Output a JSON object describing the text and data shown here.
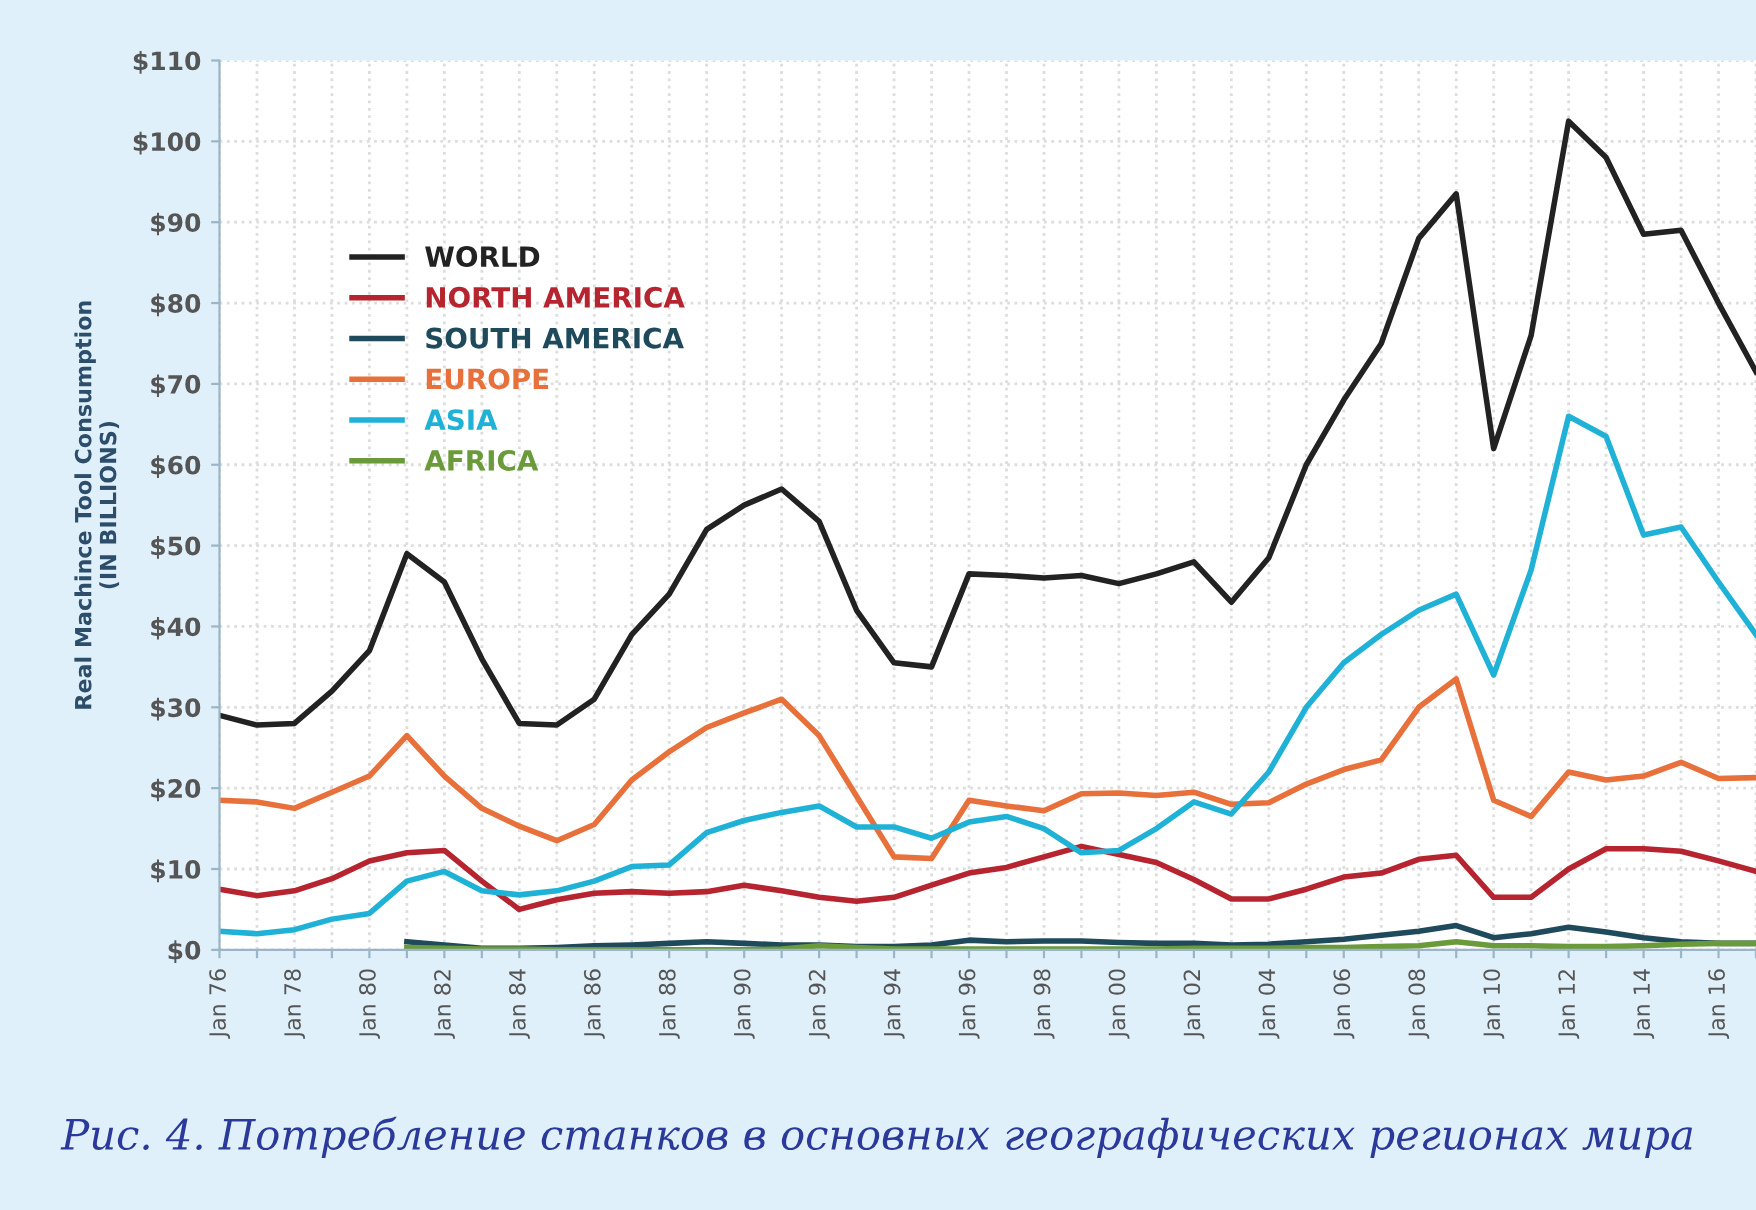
{
  "chart_data": {
    "type": "line",
    "ylabel": "Real Machince Tool Consumption\n(IN BILLIONS)",
    "annotations": [
      "Рис. 4. Потребление станков в основных географических регионах мира"
    ],
    "categories": [
      "Jan 76",
      null,
      "Jan 78",
      null,
      "Jan 80",
      null,
      "Jan 82",
      null,
      "Jan 84",
      null,
      "Jan 86",
      null,
      "Jan 88",
      null,
      "Jan 90",
      null,
      "Jan 92",
      null,
      "Jan 94",
      null,
      "Jan 96",
      null,
      "Jan 98",
      null,
      "Jan 00",
      null,
      "Jan 02",
      null,
      "Jan 04",
      null,
      "Jan 06",
      null,
      "Jan 08",
      null,
      "Jan 10",
      null,
      "Jan 12",
      null,
      "Jan 14",
      null,
      "Jan 16",
      null
    ],
    "ylim": [
      0,
      110
    ],
    "yticks": [
      {
        "value": 0,
        "label": "$0"
      },
      {
        "value": 10,
        "label": "$10"
      },
      {
        "value": 20,
        "label": "$20"
      },
      {
        "value": 30,
        "label": "$30"
      },
      {
        "value": 40,
        "label": "$40"
      },
      {
        "value": 50,
        "label": "$50"
      },
      {
        "value": 60,
        "label": "$60"
      },
      {
        "value": 70,
        "label": "$70"
      },
      {
        "value": 80,
        "label": "$80"
      },
      {
        "value": 90,
        "label": "$90"
      },
      {
        "value": 100,
        "label": "$100"
      },
      {
        "value": 110,
        "label": "$110"
      }
    ],
    "grid": true,
    "legend": "top left",
    "marker": "none",
    "line_style": "solid",
    "series": [
      {
        "name": "WORLD",
        "color": "#222222",
        "values": [
          29,
          27.8,
          28,
          32,
          37,
          49,
          45.5,
          36,
          28,
          27.8,
          31,
          39,
          44,
          52,
          55,
          57,
          53,
          42,
          35.5,
          35,
          46.5,
          46.3,
          46,
          46.3,
          45.3,
          46.5,
          48,
          43,
          48.5,
          60,
          68,
          75,
          88,
          93.5,
          62,
          76,
          102.5,
          98,
          88.5,
          89,
          80,
          71.5
        ]
      },
      {
        "name": "NORTH AMERICA",
        "color": "#b5242f",
        "values": [
          7.5,
          6.7,
          7.3,
          8.8,
          11,
          12,
          12.3,
          8.5,
          5,
          6.2,
          7,
          7.2,
          7,
          7.2,
          8,
          7.3,
          6.5,
          6,
          6.5,
          8,
          9.5,
          10.2,
          11.5,
          12.8,
          11.8,
          10.8,
          8.7,
          6.3,
          6.3,
          7.5,
          9,
          9.5,
          11.2,
          11.7,
          6.5,
          6.5,
          10,
          12.5,
          12.5,
          12.2,
          11,
          9.7
        ]
      },
      {
        "name": "SOUTH AMERICA",
        "color": "#1f4a5c",
        "values": [
          null,
          null,
          null,
          null,
          null,
          1.0,
          0.6,
          0.2,
          0.2,
          0.3,
          0.5,
          0.6,
          0.8,
          1.0,
          0.8,
          0.6,
          0.6,
          0.4,
          0.4,
          0.6,
          1.2,
          1.0,
          1.1,
          1.1,
          0.9,
          0.8,
          0.8,
          0.6,
          0.7,
          1.0,
          1.3,
          1.8,
          2.3,
          3.0,
          1.5,
          2.0,
          2.8,
          2.2,
          1.5,
          1.0,
          0.8,
          0.8
        ]
      },
      {
        "name": "EUROPE",
        "color": "#e8703a",
        "values": [
          18.5,
          18.3,
          17.5,
          19.5,
          21.5,
          26.5,
          21.5,
          17.5,
          15.3,
          13.5,
          15.5,
          21,
          24.5,
          27.5,
          29.3,
          31,
          26.5,
          19,
          11.5,
          11.3,
          18.5,
          17.8,
          17.2,
          19.3,
          19.4,
          19.1,
          19.5,
          18,
          18.2,
          20.5,
          22.3,
          23.5,
          30,
          33.5,
          18.5,
          16.5,
          22,
          21,
          21.5,
          23.2,
          21.2,
          21.3
        ]
      },
      {
        "name": "ASIA",
        "color": "#1fb2d6",
        "values": [
          2.3,
          2,
          2.5,
          3.8,
          4.5,
          8.5,
          9.7,
          7.3,
          6.8,
          7.3,
          8.5,
          10.3,
          10.5,
          14.5,
          16,
          17,
          17.8,
          15.2,
          15.2,
          13.8,
          15.8,
          16.5,
          15,
          12,
          12.3,
          15,
          18.3,
          16.8,
          22,
          30,
          35.5,
          39,
          42,
          44,
          34,
          47,
          66,
          63.5,
          51.3,
          52.3,
          45.5,
          39
        ]
      },
      {
        "name": "AFRICA",
        "color": "#6a9a3a",
        "values": [
          null,
          null,
          null,
          null,
          null,
          0.3,
          0.2,
          0.1,
          0.1,
          0.0,
          0.0,
          0.0,
          0.0,
          0.0,
          0.0,
          0.1,
          0.5,
          0.3,
          0.1,
          0.1,
          0.1,
          0.1,
          0.1,
          0.1,
          0.1,
          0.1,
          0.2,
          0.2,
          0.2,
          0.3,
          0.3,
          0.4,
          0.5,
          1.0,
          0.5,
          0.5,
          0.4,
          0.4,
          0.5,
          0.7,
          0.8,
          0.8
        ]
      }
    ]
  }
}
